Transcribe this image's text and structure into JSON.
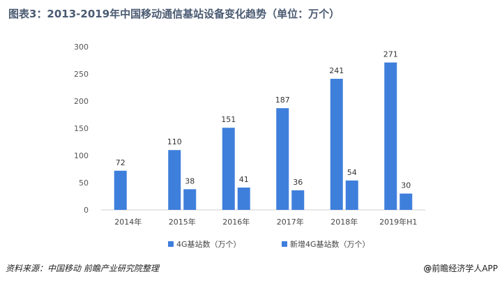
{
  "header": {
    "title": "图表3：2013-2019年中国移动通信基站设备变化趋势（单位：万个）"
  },
  "footer": {
    "source": "资料来源：中国移动 前瞻产业研究院整理",
    "brand": "前瞻经济学人APP"
  },
  "chart_data": {
    "type": "bar",
    "title": "图表3：2013-2019年中国移动通信基站设备变化趋势（单位：万个）",
    "categories": [
      "2014年",
      "2015年",
      "2016年",
      "2017年",
      "2018年",
      "2019年H1"
    ],
    "series": [
      {
        "name": "4G基站数（万个）",
        "values": [
          72,
          110,
          151,
          187,
          241,
          271
        ],
        "color": "#3f7fdc"
      },
      {
        "name": "新增4G基站数（万个）",
        "values": [
          null,
          38,
          41,
          36,
          54,
          30
        ],
        "color": "#3f7fdc"
      }
    ],
    "ylim": [
      0,
      300
    ],
    "yticks": [
      0,
      50,
      100,
      150,
      200,
      250,
      300
    ],
    "grid": false,
    "data_labels": true,
    "legend_position": "bottom"
  }
}
